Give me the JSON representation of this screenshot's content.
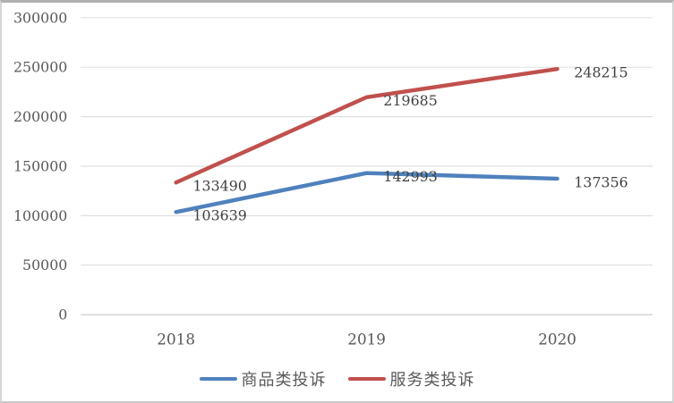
{
  "chart_data": {
    "type": "line",
    "title": "",
    "xlabel": "",
    "ylabel": "",
    "categories": [
      "2018",
      "2019",
      "2020"
    ],
    "series": [
      {
        "name": "商品类投诉",
        "color": "#4F81BD",
        "values": [
          103639,
          142993,
          137356
        ]
      },
      {
        "name": "服务类投诉",
        "color": "#C0504D",
        "values": [
          133490,
          219685,
          248215
        ]
      }
    ],
    "data_labels": true,
    "ylim": [
      0,
      300000
    ],
    "ytick_step": 50000,
    "ytick_labels": [
      "0",
      "50000",
      "100000",
      "150000",
      "200000",
      "250000",
      "300000"
    ],
    "grid": true,
    "legend_position": "bottom"
  },
  "style": {
    "grid_color": "#d9d9d9",
    "axis_line_color": "#bfbfbf",
    "tick_label_color": "#595959",
    "data_label_color": "#404040",
    "line_width": 4.5
  }
}
